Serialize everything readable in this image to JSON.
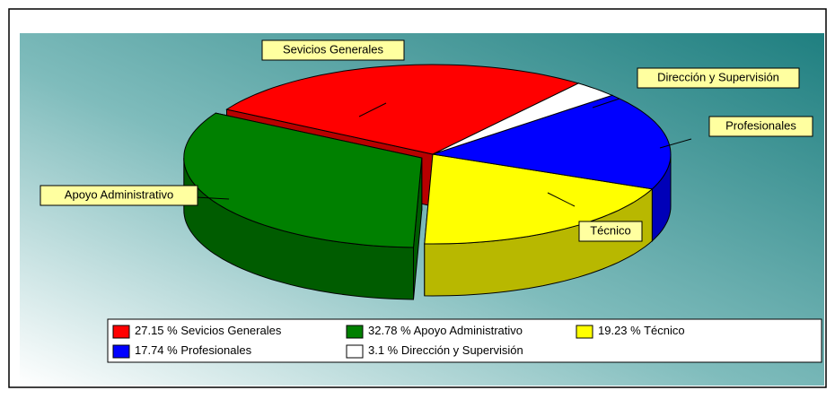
{
  "chart_data": {
    "type": "pie3d",
    "categories": [
      "Sevicios Generales",
      "Apoyo Administrativo",
      "Técnico",
      "Profesionales",
      "Dirección y Supervisión"
    ],
    "values": [
      27.15,
      32.78,
      19.23,
      17.74,
      3.1
    ],
    "value_labels": [
      "27.15 %",
      "32.78 %",
      "19.23 %",
      "17.74 %",
      "3.1 %"
    ],
    "colors": [
      "#ff0000",
      "#008000",
      "#ffff00",
      "#0000ff",
      "#ffffff"
    ],
    "legend": true
  }
}
